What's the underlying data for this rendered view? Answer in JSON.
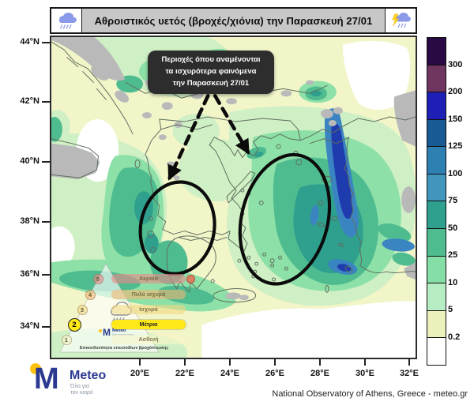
{
  "title_bar": {
    "title": "Αθροιστικός υετός (βροχές/χιόνια) την Παρασκευή 27/01",
    "left_icon": "rain-cloud",
    "right_icon": "storm-cloud"
  },
  "map": {
    "annotation": {
      "line1": "Περιοχές όπου αναμένονται",
      "line2": "τα ισχυρότερα φαινόμενα",
      "line3": "την Παρασκευή  27/01"
    },
    "lat_labels": [
      "44°N",
      "42°N",
      "40°N",
      "38°N",
      "36°N",
      "34°N"
    ],
    "lon_labels": [
      "20°E",
      "22°E",
      "24°E",
      "26°E",
      "28°E",
      "30°E",
      "32°E"
    ]
  },
  "colorbar": {
    "labels_top_to_bottom": [
      "300",
      "200",
      "150",
      "125",
      "100",
      "75",
      "50",
      "25",
      "10",
      "5",
      "0.2"
    ],
    "colors_top_to_bottom": [
      "#2a0a45",
      "#70355f",
      "#1d1fb5",
      "#175a94",
      "#2e7fb2",
      "#4196bd",
      "#2f9f8e",
      "#4fbc90",
      "#85dea5",
      "#b7edc2",
      "#ecf0ba",
      "#ffffff"
    ]
  },
  "map_colors": {
    "base_low": "#f2f5c8",
    "rain_light": "#cfefc4",
    "rain_10_25": "#8de0a7",
    "rain_25_50": "#4fbc90",
    "rain_50_75": "#2f9f8e",
    "rain_100_125": "#3b84c2",
    "rain_150_200": "#1f3cae",
    "gray_area": "#b9b9b9",
    "no_precip": "#ffffff",
    "coastline": "#5f6f5f",
    "annotation_ink": "#0b0b0b"
  },
  "warning_scale": {
    "levels": [
      {
        "num": "5",
        "label": "Ακραία",
        "active": false,
        "color": "rgba(238,136,136,0.6)"
      },
      {
        "num": "4",
        "label": "Πολύ ισχυρά",
        "active": false,
        "color": "rgba(243,182,116,0.6)"
      },
      {
        "num": "3",
        "label": "Ισχυρά",
        "active": false,
        "color": "rgba(238,216,132,0.6)"
      },
      {
        "num": "2",
        "label": "Μέτρια",
        "active": true,
        "color": "#ffe818"
      },
      {
        "num": "1",
        "label": "Ασθενή",
        "active": false,
        "color": "rgba(249,245,200,0.6)"
      }
    ],
    "active_level": "2",
    "caption": "Επικινδυνότητα επεισοδίων βροχόπτωσης"
  },
  "logo": {
    "brand": "Meteo",
    "tagline_line1": "Όλα για",
    "tagline_line2": "τον καιρό"
  },
  "credit": "National Observatory of Athens, Greece - meteo.gr"
}
